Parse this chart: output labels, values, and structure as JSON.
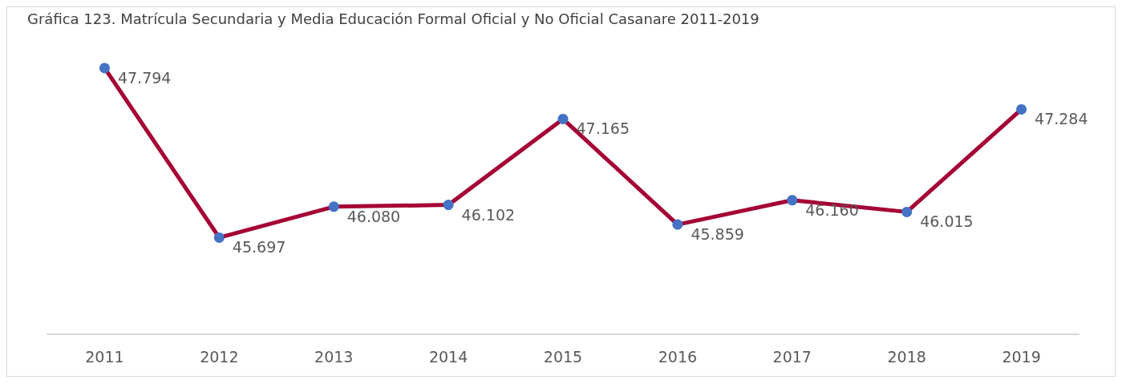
{
  "chart_data": {
    "type": "line",
    "title": "Gráfica 123. Matrícula Secundaria y Media Educación Formal Oficial y No Oficial Casanare 2011-2019",
    "categories": [
      "2011",
      "2012",
      "2013",
      "2014",
      "2015",
      "2016",
      "2017",
      "2018",
      "2019"
    ],
    "series": [
      {
        "color": "#a50034",
        "values": [
          47794,
          45697,
          46080,
          46102,
          47165,
          45859,
          46160,
          46015,
          47284
        ],
        "value_labels": [
          "47.794",
          "45.697",
          "46.080",
          "46.102",
          "47.165",
          "45.859",
          "46.160",
          "46.015",
          "47.284"
        ]
      }
    ],
    "colors": [
      "#4472c4",
      "#4472c4",
      "#4472c4",
      "#4472c4",
      "#4472c4",
      "#4472c4",
      "#4472c4",
      "#4472c4",
      "#4472c4"
    ],
    "marker": "circle",
    "grid": false
  }
}
